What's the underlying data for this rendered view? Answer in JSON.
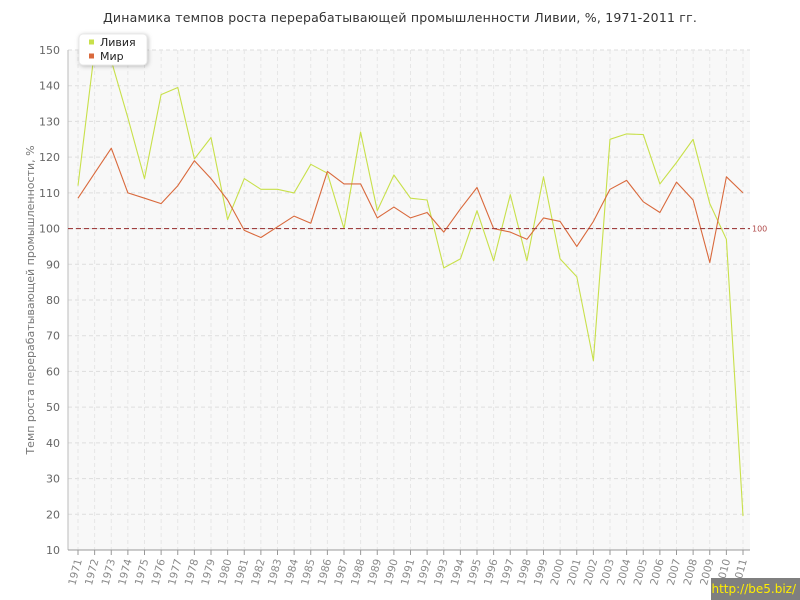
{
  "chart_data": {
    "type": "line",
    "title": "Динамика темпов роста перерабатывающей промышленности Ливии, %, 1971-2011 гг.",
    "ylabel": "Темп роста перерабатывающей промышленности, %",
    "xlabel": "",
    "ylim": [
      10,
      150
    ],
    "yticks": [
      10,
      20,
      30,
      40,
      50,
      60,
      70,
      80,
      90,
      100,
      110,
      120,
      130,
      140,
      150
    ],
    "grid": true,
    "legend_position": "top-left",
    "categories": [
      "1971",
      "1972",
      "1973",
      "1974",
      "1975",
      "1976",
      "1977",
      "1978",
      "1979",
      "1980",
      "1981",
      "1982",
      "1983",
      "1984",
      "1985",
      "1986",
      "1987",
      "1988",
      "1989",
      "1990",
      "1991",
      "1992",
      "1993",
      "1994",
      "1995",
      "1996",
      "1997",
      "1998",
      "1999",
      "2000",
      "2001",
      "2002",
      "2003",
      "2004",
      "2005",
      "2006",
      "2007",
      "2008",
      "2009",
      "2010",
      "2011"
    ],
    "series": [
      {
        "name": "Ливия",
        "color": "#c8e04a",
        "values": [
          112,
          150,
          147,
          131,
          114,
          137.5,
          139.5,
          119.5,
          125.5,
          102.5,
          114,
          111,
          111,
          110,
          118,
          115.5,
          100,
          127,
          105,
          115,
          108.5,
          108,
          89,
          91.5,
          105,
          91,
          109.5,
          91,
          114.5,
          91.5,
          86.5,
          63,
          125,
          126.5,
          126.3,
          112.5,
          118.5,
          125,
          107,
          97,
          19.5
        ]
      },
      {
        "name": "Мир",
        "color": "#d9693c",
        "values": [
          108.5,
          115.5,
          122.5,
          110,
          108.5,
          107,
          112,
          119,
          114,
          108,
          99.5,
          97.5,
          100.5,
          103.5,
          101.5,
          116,
          112.5,
          112.5,
          103,
          106,
          103,
          104.5,
          99,
          105.5,
          111.5,
          100,
          99,
          97,
          103,
          102,
          95,
          102,
          111,
          113.5,
          107.5,
          104.5,
          113,
          108,
          90.5,
          114.5,
          110
        ]
      }
    ],
    "reference_line": {
      "value": 100,
      "label": "100",
      "color": "#a04040"
    }
  },
  "watermark": "http://be5.biz/"
}
